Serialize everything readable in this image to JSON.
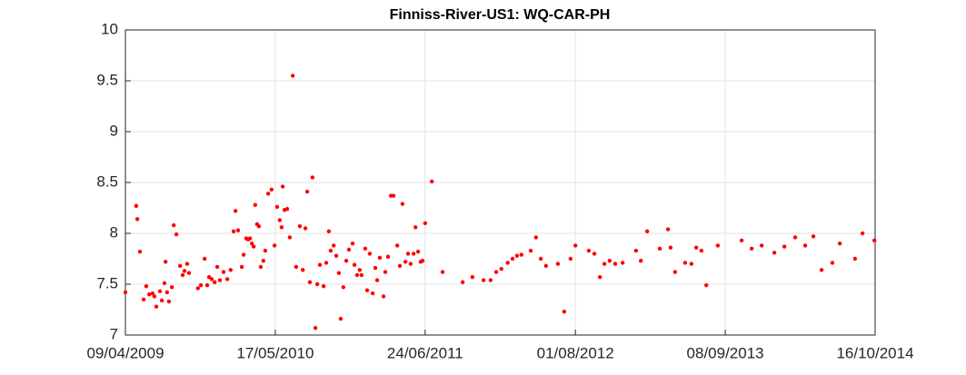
{
  "chart_data": {
    "type": "scatter",
    "title": "Finniss-River-US1: WQ-CAR-PH",
    "x": [
      "2009-04-09",
      "2009-05-08",
      "2009-05-11",
      "2009-05-18",
      "2009-05-28",
      "2009-06-04",
      "2009-06-12",
      "2009-06-21",
      "2009-06-26",
      "2009-07-01",
      "2009-07-11",
      "2009-07-16",
      "2009-07-23",
      "2009-07-26",
      "2009-07-30",
      "2009-08-04",
      "2009-08-12",
      "2009-08-17",
      "2009-08-24",
      "2009-09-03",
      "2009-09-10",
      "2009-09-15",
      "2009-09-22",
      "2009-09-27",
      "2009-10-21",
      "2009-10-29",
      "2009-11-08",
      "2009-11-15",
      "2009-11-20",
      "2009-11-27",
      "2009-12-05",
      "2009-12-12",
      "2009-12-19",
      "2009-12-29",
      "2010-01-08",
      "2010-01-17",
      "2010-01-25",
      "2010-01-30",
      "2010-02-06",
      "2010-02-16",
      "2010-02-21",
      "2010-02-28",
      "2010-03-05",
      "2010-03-10",
      "2010-03-15",
      "2010-03-20",
      "2010-03-24",
      "2010-03-29",
      "2010-04-03",
      "2010-04-08",
      "2010-04-15",
      "2010-04-20",
      "2010-04-28",
      "2010-05-07",
      "2010-05-15",
      "2010-05-22",
      "2010-05-29",
      "2010-06-03",
      "2010-06-06",
      "2010-06-11",
      "2010-06-18",
      "2010-06-25",
      "2010-07-03",
      "2010-07-12",
      "2010-07-22",
      "2010-07-30",
      "2010-08-06",
      "2010-08-11",
      "2010-08-18",
      "2010-08-25",
      "2010-09-02",
      "2010-09-07",
      "2010-09-14",
      "2010-09-24",
      "2010-10-01",
      "2010-10-08",
      "2010-10-13",
      "2010-10-21",
      "2010-10-28",
      "2010-11-04",
      "2010-11-09",
      "2010-11-16",
      "2010-11-24",
      "2010-12-01",
      "2010-12-11",
      "2010-12-16",
      "2010-12-23",
      "2010-12-30",
      "2011-01-04",
      "2011-01-14",
      "2011-01-19",
      "2011-01-26",
      "2011-02-03",
      "2011-02-10",
      "2011-02-15",
      "2011-02-22",
      "2011-03-04",
      "2011-03-09",
      "2011-03-16",
      "2011-03-24",
      "2011-03-31",
      "2011-04-10",
      "2011-04-17",
      "2011-04-24",
      "2011-05-02",
      "2011-05-09",
      "2011-05-16",
      "2011-05-24",
      "2011-05-29",
      "2011-06-05",
      "2011-06-12",
      "2011-06-17",
      "2011-06-24",
      "2011-07-12",
      "2011-08-10",
      "2011-10-03",
      "2011-10-29",
      "2011-11-28",
      "2011-12-17",
      "2012-01-01",
      "2012-01-15",
      "2012-02-01",
      "2012-02-14",
      "2012-02-26",
      "2012-03-09",
      "2012-04-03",
      "2012-04-17",
      "2012-04-30",
      "2012-05-14",
      "2012-06-15",
      "2012-07-02",
      "2012-07-19",
      "2012-08-01",
      "2012-09-06",
      "2012-09-21",
      "2012-10-06",
      "2012-10-18",
      "2012-11-01",
      "2012-11-16",
      "2012-12-06",
      "2013-01-11",
      "2013-01-24",
      "2013-02-10",
      "2013-03-16",
      "2013-04-07",
      "2013-04-14",
      "2013-04-26",
      "2013-05-23",
      "2013-06-09",
      "2013-06-22",
      "2013-07-06",
      "2013-07-19",
      "2013-08-19",
      "2013-10-22",
      "2013-11-18",
      "2013-12-15",
      "2014-01-18",
      "2014-02-14",
      "2014-03-15",
      "2014-04-11",
      "2014-05-03",
      "2014-05-25",
      "2014-06-23",
      "2014-07-13",
      "2014-08-23",
      "2014-09-12",
      "2014-10-14"
    ],
    "values": [
      7.42,
      8.27,
      8.14,
      7.82,
      7.35,
      7.48,
      7.4,
      7.41,
      7.38,
      7.28,
      7.43,
      7.34,
      7.51,
      7.72,
      7.42,
      7.33,
      7.47,
      8.08,
      7.99,
      7.68,
      7.59,
      7.63,
      7.7,
      7.61,
      7.46,
      7.49,
      7.75,
      7.49,
      7.57,
      7.55,
      7.52,
      7.67,
      7.54,
      7.62,
      7.55,
      7.64,
      8.02,
      8.22,
      8.03,
      7.67,
      7.79,
      7.95,
      7.94,
      7.95,
      7.9,
      7.87,
      8.28,
      8.09,
      8.07,
      7.67,
      7.73,
      7.83,
      8.39,
      8.43,
      7.88,
      8.26,
      8.13,
      8.06,
      8.46,
      8.23,
      8.24,
      7.96,
      9.55,
      7.67,
      8.07,
      7.64,
      8.05,
      8.41,
      7.52,
      8.55,
      7.07,
      7.5,
      7.69,
      7.48,
      7.71,
      8.02,
      7.83,
      7.88,
      7.78,
      7.61,
      7.16,
      7.47,
      7.73,
      7.84,
      7.9,
      7.69,
      7.59,
      7.64,
      7.59,
      7.85,
      7.44,
      7.8,
      7.41,
      7.66,
      7.54,
      7.76,
      7.38,
      7.62,
      7.77,
      8.37,
      8.37,
      7.88,
      7.68,
      8.29,
      7.72,
      7.8,
      7.7,
      7.8,
      8.06,
      7.82,
      7.72,
      7.73,
      8.1,
      8.51,
      7.62,
      7.52,
      7.57,
      7.54,
      7.54,
      7.62,
      7.65,
      7.71,
      7.75,
      7.78,
      7.79,
      7.83,
      7.96,
      7.75,
      7.68,
      7.7,
      7.23,
      7.75,
      7.88,
      7.83,
      7.8,
      7.57,
      7.7,
      7.73,
      7.7,
      7.71,
      7.83,
      7.73,
      8.02,
      7.85,
      8.04,
      7.86,
      7.62,
      7.71,
      7.7,
      7.86,
      7.83,
      7.49,
      7.88,
      7.93,
      7.85,
      7.88,
      7.81,
      7.87,
      7.96,
      7.88,
      7.97,
      7.64,
      7.71,
      7.9,
      7.75,
      8.0,
      7.93
    ],
    "color": "#ff0000",
    "xlim": [
      "2009-04-09",
      "2014-10-16"
    ],
    "xticks": [
      {
        "value": "2009-04-09",
        "label": "09/04/2009"
      },
      {
        "value": "2010-05-17",
        "label": "17/05/2010"
      },
      {
        "value": "2011-06-24",
        "label": "24/06/2011"
      },
      {
        "value": "2012-08-01",
        "label": "01/08/2012"
      },
      {
        "value": "2013-09-08",
        "label": "08/09/2013"
      },
      {
        "value": "2014-10-16",
        "label": "16/10/2014"
      }
    ],
    "ylim": [
      7,
      10
    ],
    "yticks": [
      7,
      7.5,
      8,
      8.5,
      9,
      9.5,
      10
    ],
    "grid": true
  }
}
